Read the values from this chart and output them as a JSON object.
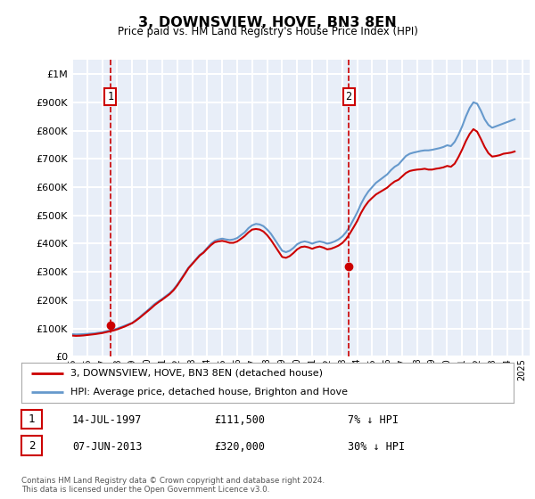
{
  "title": "3, DOWNSVIEW, HOVE, BN3 8EN",
  "subtitle": "Price paid vs. HM Land Registry's House Price Index (HPI)",
  "footer": "Contains HM Land Registry data © Crown copyright and database right 2024.\nThis data is licensed under the Open Government Licence v3.0.",
  "legend_line1": "3, DOWNSVIEW, HOVE, BN3 8EN (detached house)",
  "legend_line2": "HPI: Average price, detached house, Brighton and Hove",
  "annotation1": {
    "label": "1",
    "date_str": "14-JUL-1997",
    "price_str": "£111,500",
    "pct_str": "7% ↓ HPI",
    "year": 1997.54,
    "price": 111500
  },
  "annotation2": {
    "label": "2",
    "date_str": "07-JUN-2013",
    "price_str": "£320,000",
    "pct_str": "30% ↓ HPI",
    "year": 2013.44,
    "price": 320000
  },
  "background_color": "#e8eef8",
  "grid_color": "#ffffff",
  "hpi_color": "#6699cc",
  "price_color": "#cc0000",
  "vline_color": "#cc0000",
  "dot_color": "#cc0000",
  "ylim": [
    0,
    1050000
  ],
  "xlim": [
    1995,
    2025.5
  ],
  "hpi_data": {
    "years": [
      1995.0,
      1995.25,
      1995.5,
      1995.75,
      1996.0,
      1996.25,
      1996.5,
      1996.75,
      1997.0,
      1997.25,
      1997.5,
      1997.75,
      1998.0,
      1998.25,
      1998.5,
      1998.75,
      1999.0,
      1999.25,
      1999.5,
      1999.75,
      2000.0,
      2000.25,
      2000.5,
      2000.75,
      2001.0,
      2001.25,
      2001.5,
      2001.75,
      2002.0,
      2002.25,
      2002.5,
      2002.75,
      2003.0,
      2003.25,
      2003.5,
      2003.75,
      2004.0,
      2004.25,
      2004.5,
      2004.75,
      2005.0,
      2005.25,
      2005.5,
      2005.75,
      2006.0,
      2006.25,
      2006.5,
      2006.75,
      2007.0,
      2007.25,
      2007.5,
      2007.75,
      2008.0,
      2008.25,
      2008.5,
      2008.75,
      2009.0,
      2009.25,
      2009.5,
      2009.75,
      2010.0,
      2010.25,
      2010.5,
      2010.75,
      2011.0,
      2011.25,
      2011.5,
      2011.75,
      2012.0,
      2012.25,
      2012.5,
      2012.75,
      2013.0,
      2013.25,
      2013.5,
      2013.75,
      2014.0,
      2014.25,
      2014.5,
      2014.75,
      2015.0,
      2015.25,
      2015.5,
      2015.75,
      2016.0,
      2016.25,
      2016.5,
      2016.75,
      2017.0,
      2017.25,
      2017.5,
      2017.75,
      2018.0,
      2018.25,
      2018.5,
      2018.75,
      2019.0,
      2019.25,
      2019.5,
      2019.75,
      2020.0,
      2020.25,
      2020.5,
      2020.75,
      2021.0,
      2021.25,
      2021.5,
      2021.75,
      2022.0,
      2022.25,
      2022.5,
      2022.75,
      2023.0,
      2023.25,
      2023.5,
      2023.75,
      2024.0,
      2024.25,
      2024.5
    ],
    "values": [
      80000,
      79000,
      79500,
      80000,
      81000,
      82000,
      83000,
      85000,
      87000,
      90000,
      93000,
      96000,
      100000,
      105000,
      110000,
      115000,
      120000,
      130000,
      140000,
      152000,
      163000,
      175000,
      187000,
      196000,
      205000,
      215000,
      225000,
      238000,
      255000,
      275000,
      295000,
      315000,
      330000,
      345000,
      360000,
      370000,
      385000,
      400000,
      410000,
      415000,
      418000,
      415000,
      413000,
      415000,
      420000,
      430000,
      440000,
      455000,
      465000,
      470000,
      468000,
      462000,
      450000,
      435000,
      415000,
      395000,
      375000,
      370000,
      375000,
      385000,
      398000,
      405000,
      408000,
      405000,
      400000,
      405000,
      408000,
      405000,
      400000,
      403000,
      408000,
      415000,
      425000,
      440000,
      460000,
      485000,
      510000,
      540000,
      565000,
      585000,
      600000,
      615000,
      625000,
      635000,
      645000,
      660000,
      672000,
      680000,
      695000,
      710000,
      718000,
      722000,
      725000,
      728000,
      730000,
      730000,
      732000,
      735000,
      738000,
      742000,
      748000,
      745000,
      760000,
      785000,
      815000,
      850000,
      880000,
      900000,
      895000,
      870000,
      840000,
      820000,
      810000,
      815000,
      820000,
      825000,
      830000,
      835000,
      840000
    ]
  },
  "price_data": {
    "years": [
      1995.0,
      1995.25,
      1995.5,
      1995.75,
      1996.0,
      1996.25,
      1996.5,
      1996.75,
      1997.0,
      1997.25,
      1997.5,
      1997.75,
      1998.0,
      1998.25,
      1998.5,
      1998.75,
      1999.0,
      1999.25,
      1999.5,
      1999.75,
      2000.0,
      2000.25,
      2000.5,
      2000.75,
      2001.0,
      2001.25,
      2001.5,
      2001.75,
      2002.0,
      2002.25,
      2002.5,
      2002.75,
      2003.0,
      2003.25,
      2003.5,
      2003.75,
      2004.0,
      2004.25,
      2004.5,
      2004.75,
      2005.0,
      2005.25,
      2005.5,
      2005.75,
      2006.0,
      2006.25,
      2006.5,
      2006.75,
      2007.0,
      2007.25,
      2007.5,
      2007.75,
      2008.0,
      2008.25,
      2008.5,
      2008.75,
      2009.0,
      2009.25,
      2009.5,
      2009.75,
      2010.0,
      2010.25,
      2010.5,
      2010.75,
      2011.0,
      2011.25,
      2011.5,
      2011.75,
      2012.0,
      2012.25,
      2012.5,
      2012.75,
      2013.0,
      2013.25,
      2013.5,
      2013.75,
      2014.0,
      2014.25,
      2014.5,
      2014.75,
      2015.0,
      2015.25,
      2015.5,
      2015.75,
      2016.0,
      2016.25,
      2016.5,
      2016.75,
      2017.0,
      2017.25,
      2017.5,
      2017.75,
      2018.0,
      2018.25,
      2018.5,
      2018.75,
      2019.0,
      2019.25,
      2019.5,
      2019.75,
      2020.0,
      2020.25,
      2020.5,
      2020.75,
      2021.0,
      2021.25,
      2021.5,
      2021.75,
      2022.0,
      2022.25,
      2022.5,
      2022.75,
      2023.0,
      2023.25,
      2023.5,
      2023.75,
      2024.0,
      2024.25,
      2024.5
    ],
    "values": [
      75000,
      74000,
      74500,
      75500,
      77000,
      78500,
      80000,
      82000,
      84000,
      87000,
      90000,
      93000,
      97000,
      102000,
      107000,
      113000,
      119000,
      128000,
      138000,
      149000,
      160000,
      171000,
      183000,
      193000,
      202000,
      212000,
      222000,
      235000,
      252000,
      272000,
      292000,
      313000,
      328000,
      343000,
      358000,
      368000,
      382000,
      395000,
      405000,
      408000,
      410000,
      407000,
      403000,
      403000,
      408000,
      417000,
      427000,
      440000,
      450000,
      452000,
      450000,
      443000,
      430000,
      413000,
      393000,
      373000,
      353000,
      350000,
      356000,
      367000,
      380000,
      388000,
      390000,
      387000,
      382000,
      387000,
      390000,
      386000,
      380000,
      382000,
      387000,
      393000,
      402000,
      416000,
      435000,
      457000,
      480000,
      508000,
      531000,
      549000,
      562000,
      574000,
      582000,
      590000,
      598000,
      610000,
      620000,
      626000,
      638000,
      650000,
      657000,
      660000,
      662000,
      663000,
      665000,
      662000,
      662000,
      665000,
      667000,
      670000,
      675000,
      672000,
      683000,
      706000,
      733000,
      763000,
      788000,
      805000,
      796000,
      770000,
      742000,
      720000,
      708000,
      710000,
      713000,
      718000,
      720000,
      722000,
      726000
    ]
  }
}
